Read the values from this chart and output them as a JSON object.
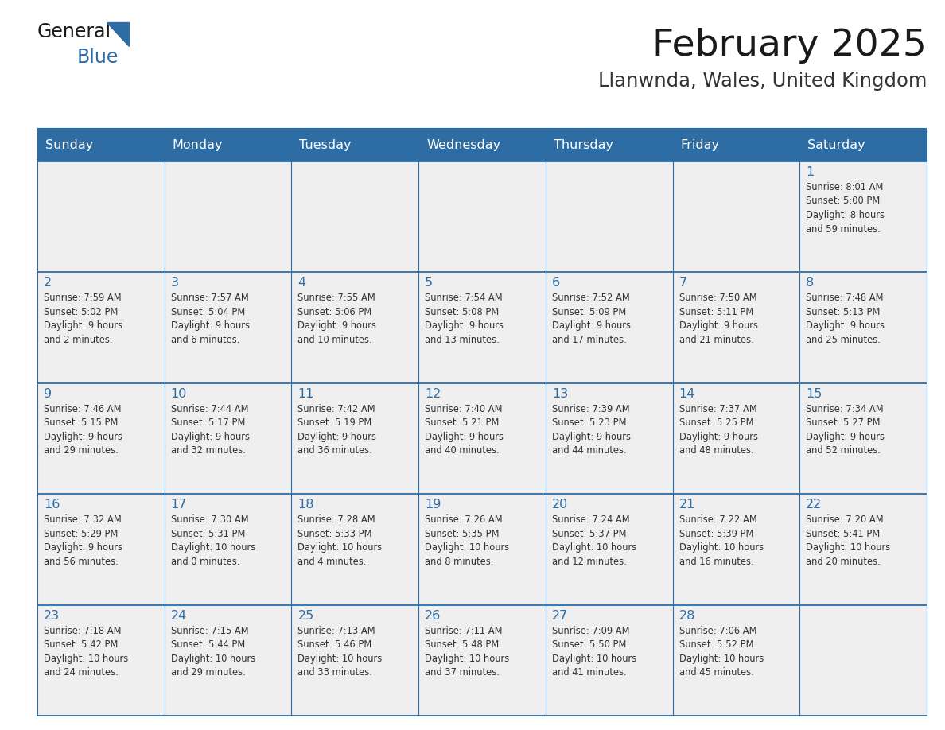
{
  "title": "February 2025",
  "subtitle": "Llanwnda, Wales, United Kingdom",
  "header_color": "#2e6da4",
  "header_text_color": "#ffffff",
  "cell_bg_color": "#efefef",
  "border_color": "#2e6da4",
  "separator_color": "#2e6da4",
  "day_headers": [
    "Sunday",
    "Monday",
    "Tuesday",
    "Wednesday",
    "Thursday",
    "Friday",
    "Saturday"
  ],
  "title_color": "#1a1a1a",
  "subtitle_color": "#333333",
  "day_number_color": "#2e6da4",
  "cell_text_color": "#333333",
  "logo_general_color": "#1a1a1a",
  "logo_blue_color": "#2e6da4",
  "fig_width": 11.88,
  "fig_height": 9.18,
  "dpi": 100,
  "weeks": [
    [
      {
        "day": null,
        "text": ""
      },
      {
        "day": null,
        "text": ""
      },
      {
        "day": null,
        "text": ""
      },
      {
        "day": null,
        "text": ""
      },
      {
        "day": null,
        "text": ""
      },
      {
        "day": null,
        "text": ""
      },
      {
        "day": 1,
        "text": "Sunrise: 8:01 AM\nSunset: 5:00 PM\nDaylight: 8 hours\nand 59 minutes."
      }
    ],
    [
      {
        "day": 2,
        "text": "Sunrise: 7:59 AM\nSunset: 5:02 PM\nDaylight: 9 hours\nand 2 minutes."
      },
      {
        "day": 3,
        "text": "Sunrise: 7:57 AM\nSunset: 5:04 PM\nDaylight: 9 hours\nand 6 minutes."
      },
      {
        "day": 4,
        "text": "Sunrise: 7:55 AM\nSunset: 5:06 PM\nDaylight: 9 hours\nand 10 minutes."
      },
      {
        "day": 5,
        "text": "Sunrise: 7:54 AM\nSunset: 5:08 PM\nDaylight: 9 hours\nand 13 minutes."
      },
      {
        "day": 6,
        "text": "Sunrise: 7:52 AM\nSunset: 5:09 PM\nDaylight: 9 hours\nand 17 minutes."
      },
      {
        "day": 7,
        "text": "Sunrise: 7:50 AM\nSunset: 5:11 PM\nDaylight: 9 hours\nand 21 minutes."
      },
      {
        "day": 8,
        "text": "Sunrise: 7:48 AM\nSunset: 5:13 PM\nDaylight: 9 hours\nand 25 minutes."
      }
    ],
    [
      {
        "day": 9,
        "text": "Sunrise: 7:46 AM\nSunset: 5:15 PM\nDaylight: 9 hours\nand 29 minutes."
      },
      {
        "day": 10,
        "text": "Sunrise: 7:44 AM\nSunset: 5:17 PM\nDaylight: 9 hours\nand 32 minutes."
      },
      {
        "day": 11,
        "text": "Sunrise: 7:42 AM\nSunset: 5:19 PM\nDaylight: 9 hours\nand 36 minutes."
      },
      {
        "day": 12,
        "text": "Sunrise: 7:40 AM\nSunset: 5:21 PM\nDaylight: 9 hours\nand 40 minutes."
      },
      {
        "day": 13,
        "text": "Sunrise: 7:39 AM\nSunset: 5:23 PM\nDaylight: 9 hours\nand 44 minutes."
      },
      {
        "day": 14,
        "text": "Sunrise: 7:37 AM\nSunset: 5:25 PM\nDaylight: 9 hours\nand 48 minutes."
      },
      {
        "day": 15,
        "text": "Sunrise: 7:34 AM\nSunset: 5:27 PM\nDaylight: 9 hours\nand 52 minutes."
      }
    ],
    [
      {
        "day": 16,
        "text": "Sunrise: 7:32 AM\nSunset: 5:29 PM\nDaylight: 9 hours\nand 56 minutes."
      },
      {
        "day": 17,
        "text": "Sunrise: 7:30 AM\nSunset: 5:31 PM\nDaylight: 10 hours\nand 0 minutes."
      },
      {
        "day": 18,
        "text": "Sunrise: 7:28 AM\nSunset: 5:33 PM\nDaylight: 10 hours\nand 4 minutes."
      },
      {
        "day": 19,
        "text": "Sunrise: 7:26 AM\nSunset: 5:35 PM\nDaylight: 10 hours\nand 8 minutes."
      },
      {
        "day": 20,
        "text": "Sunrise: 7:24 AM\nSunset: 5:37 PM\nDaylight: 10 hours\nand 12 minutes."
      },
      {
        "day": 21,
        "text": "Sunrise: 7:22 AM\nSunset: 5:39 PM\nDaylight: 10 hours\nand 16 minutes."
      },
      {
        "day": 22,
        "text": "Sunrise: 7:20 AM\nSunset: 5:41 PM\nDaylight: 10 hours\nand 20 minutes."
      }
    ],
    [
      {
        "day": 23,
        "text": "Sunrise: 7:18 AM\nSunset: 5:42 PM\nDaylight: 10 hours\nand 24 minutes."
      },
      {
        "day": 24,
        "text": "Sunrise: 7:15 AM\nSunset: 5:44 PM\nDaylight: 10 hours\nand 29 minutes."
      },
      {
        "day": 25,
        "text": "Sunrise: 7:13 AM\nSunset: 5:46 PM\nDaylight: 10 hours\nand 33 minutes."
      },
      {
        "day": 26,
        "text": "Sunrise: 7:11 AM\nSunset: 5:48 PM\nDaylight: 10 hours\nand 37 minutes."
      },
      {
        "day": 27,
        "text": "Sunrise: 7:09 AM\nSunset: 5:50 PM\nDaylight: 10 hours\nand 41 minutes."
      },
      {
        "day": 28,
        "text": "Sunrise: 7:06 AM\nSunset: 5:52 PM\nDaylight: 10 hours\nand 45 minutes."
      },
      {
        "day": null,
        "text": ""
      }
    ]
  ]
}
